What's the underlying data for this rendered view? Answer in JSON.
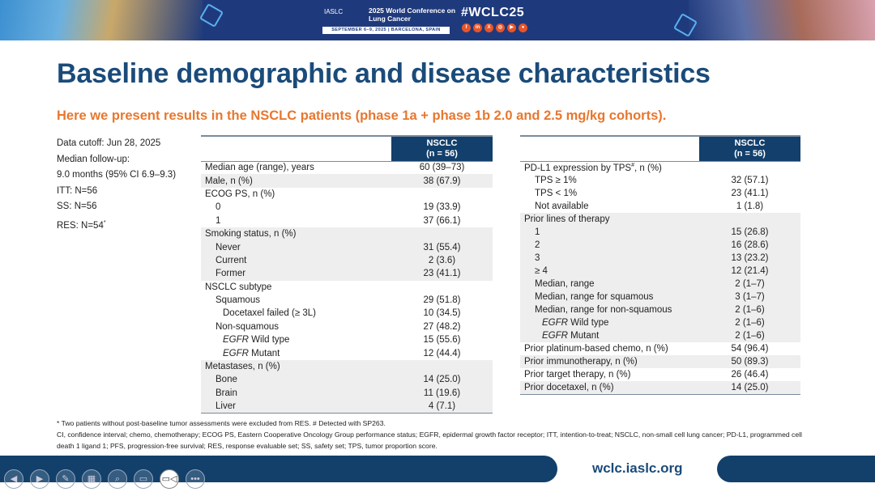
{
  "banner": {
    "org": "IASLC",
    "conference": "2025 World Conference on Lung Cancer",
    "dates": "SEPTEMBER 6–9, 2025  |  BARCELONA, SPAIN",
    "hashtag": "#WCLC25",
    "socials": [
      "facebook-icon",
      "linkedin-icon",
      "x-icon",
      "instagram-icon",
      "youtube-icon",
      "wechat-icon"
    ]
  },
  "title": "Baseline demographic and disease characteristics",
  "subtitle": "Here we present results in the NSCLC patients (phase 1a + phase 1b 2.0 and 2.5 mg/kg cohorts).",
  "info": [
    "Data cutoff: Jun 28, 2025",
    "Median follow-up:",
    "9.0 months (95% CI 6.9–9.3)",
    "ITT: N=56",
    "SS: N=56",
    "RES: N=54"
  ],
  "info_mark": "*",
  "table_header": {
    "line1": "NSCLC",
    "line2": "(n = 56)"
  },
  "left_table": [
    {
      "label": "Median age (range), years",
      "value": "60 (39–73)",
      "indent": 0,
      "group": 0
    },
    {
      "label": "Male, n (%)",
      "value": "38 (67.9)",
      "indent": 0,
      "group": 1
    },
    {
      "label": "ECOG PS, n (%)",
      "value": "",
      "indent": 0,
      "group": 0
    },
    {
      "label": "0",
      "value": "19 (33.9)",
      "indent": 1,
      "group": 0
    },
    {
      "label": "1",
      "value": "37 (66.1)",
      "indent": 1,
      "group": 0
    },
    {
      "label": "Smoking status, n (%)",
      "value": "",
      "indent": 0,
      "group": 1
    },
    {
      "label": "Never",
      "value": "31 (55.4)",
      "indent": 1,
      "group": 1
    },
    {
      "label": "Current",
      "value": "2 (3.6)",
      "indent": 1,
      "group": 1
    },
    {
      "label": "Former",
      "value": "23 (41.1)",
      "indent": 1,
      "group": 1
    },
    {
      "label": "NSCLC subtype",
      "value": "",
      "indent": 0,
      "group": 0
    },
    {
      "label": "Squamous",
      "value": "29 (51.8)",
      "indent": 1,
      "group": 0
    },
    {
      "label": "Docetaxel failed (≥ 3L)",
      "value": "10 (34.5)",
      "indent": 2,
      "group": 0
    },
    {
      "label": "Non-squamous",
      "value": "27 (48.2)",
      "indent": 1,
      "group": 0
    },
    {
      "label": "Wild type",
      "italic": "EGFR",
      "value": "15 (55.6)",
      "indent": 2,
      "group": 0
    },
    {
      "label": "Mutant",
      "italic": "EGFR",
      "value": "12 (44.4)",
      "indent": 2,
      "group": 0
    },
    {
      "label": "Metastases, n (%)",
      "value": "",
      "indent": 0,
      "group": 1
    },
    {
      "label": "Bone",
      "value": "14 (25.0)",
      "indent": 1,
      "group": 1
    },
    {
      "label": "Brain",
      "value": "11 (19.6)",
      "indent": 1,
      "group": 1
    },
    {
      "label": "Liver",
      "value": "4 (7.1)",
      "indent": 1,
      "group": 1
    }
  ],
  "right_table": [
    {
      "label": "PD-L1 expression by TPS#, n (%)",
      "value": "",
      "indent": 0,
      "group": 0
    },
    {
      "label": "TPS ≥ 1%",
      "value": "32 (57.1)",
      "indent": 1,
      "group": 0
    },
    {
      "label": "TPS < 1%",
      "value": "23 (41.1)",
      "indent": 1,
      "group": 0
    },
    {
      "label": "Not available",
      "value": "1 (1.8)",
      "indent": 1,
      "group": 0
    },
    {
      "label": "Prior lines of therapy",
      "value": "",
      "indent": 0,
      "group": 1
    },
    {
      "label": "1",
      "value": "15 (26.8)",
      "indent": 1,
      "group": 1
    },
    {
      "label": "2",
      "value": "16 (28.6)",
      "indent": 1,
      "group": 1
    },
    {
      "label": "3",
      "value": "13 (23.2)",
      "indent": 1,
      "group": 1
    },
    {
      "label": "≥ 4",
      "value": "12 (21.4)",
      "indent": 1,
      "group": 1
    },
    {
      "label": "Median, range",
      "value": "2 (1–7)",
      "indent": 1,
      "group": 1
    },
    {
      "label": "Median, range for squamous",
      "value": "3 (1–7)",
      "indent": 1,
      "group": 1
    },
    {
      "label": "Median, range for non-squamous",
      "value": "2 (1–6)",
      "indent": 1,
      "group": 1
    },
    {
      "label": "Wild type",
      "italic": "EGFR",
      "value": "2 (1–6)",
      "indent": 2,
      "group": 1
    },
    {
      "label": "Mutant",
      "italic": "EGFR",
      "value": "2 (1–6)",
      "indent": 2,
      "group": 1
    },
    {
      "label": "Prior platinum-based chemo, n (%)",
      "value": "54 (96.4)",
      "indent": 0,
      "group": 0
    },
    {
      "label": "Prior immunotherapy, n (%)",
      "value": "50 (89.3)",
      "indent": 0,
      "group": 1
    },
    {
      "label": "Prior target therapy, n (%)",
      "value": "26 (46.4)",
      "indent": 0,
      "group": 0
    },
    {
      "label": "Prior docetaxel, n (%)",
      "value": "14 (25.0)",
      "indent": 0,
      "group": 1
    }
  ],
  "footnotes": [
    "* Two patients without post-baseline tumor assessments were excluded from RES. # Detected with SP263.",
    "CI, confidence interval; chemo, chemotherapy; ECOG PS, Eastern Cooperative Oncology Group performance status; EGFR, epidermal growth factor receptor; ITT, intention-to-treat; NSCLC, non-small cell lung cancer; PD-L1, programmed cell death 1 ligand 1; PFS, progression-free survival; RES, response evaluable set; SS, safety set; TPS, tumor proportion score."
  ],
  "url": "wclc.iaslc.org",
  "controls": [
    {
      "name": "previous-icon",
      "glyph": "◀"
    },
    {
      "name": "next-icon",
      "glyph": "▶"
    },
    {
      "name": "pen-icon",
      "glyph": "✎"
    },
    {
      "name": "slides-icon",
      "glyph": "▦"
    },
    {
      "name": "zoom-icon",
      "glyph": "⌕"
    },
    {
      "name": "subtitles-icon",
      "glyph": "▭"
    },
    {
      "name": "camera-icon",
      "glyph": "▭◁"
    },
    {
      "name": "more-icon",
      "glyph": "•••"
    }
  ]
}
